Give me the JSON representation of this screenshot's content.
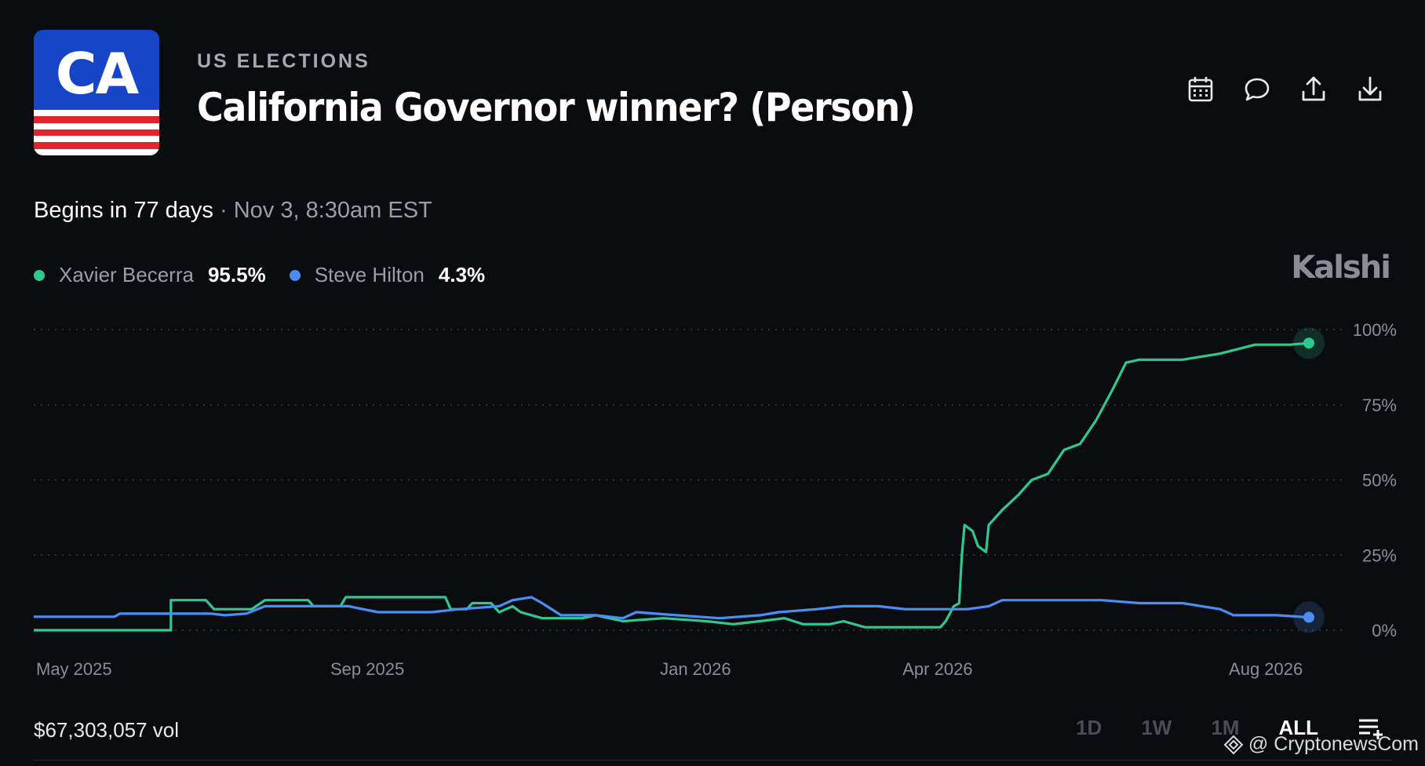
{
  "header": {
    "logo_text": "CA",
    "category": "US ELECTIONS",
    "title": "California Governor winner? (Person)",
    "actions": [
      {
        "name": "calendar-icon"
      },
      {
        "name": "comment-icon"
      },
      {
        "name": "share-icon"
      },
      {
        "name": "download-icon"
      }
    ]
  },
  "status": {
    "begins": "Begins in 77 days",
    "separator": " · ",
    "date": "Nov 3, 8:30am EST"
  },
  "legend": [
    {
      "name": "Xavier Becerra",
      "value": "95.5%",
      "color": "#2fc98e"
    },
    {
      "name": "Steve Hilton",
      "value": "4.3%",
      "color": "#4a8ef5"
    }
  ],
  "brand": "Kalshi",
  "footer": {
    "volume": "$67,303,057 vol",
    "ranges": [
      "1D",
      "1W",
      "1M",
      "ALL"
    ],
    "active_range": "ALL",
    "watermark": "@ CryptonewsCom"
  },
  "colors": {
    "background": "#0b0c10",
    "becerra": "#2fc98e",
    "hilton": "#4a8ef5",
    "grid": "#3a3d45"
  },
  "chart_data": {
    "type": "line",
    "y_ticks": [
      "100%",
      "75%",
      "50%",
      "25%",
      "0%"
    ],
    "ylim": [
      0,
      100
    ],
    "x_ticks": [
      "May 2025",
      "Sep 2025",
      "Jan 2026",
      "Apr 2026",
      "Aug 2026"
    ],
    "x_tick_dates": [
      "2025-05-01",
      "2025-09-01",
      "2026-01-01",
      "2026-04-01",
      "2026-08-01"
    ],
    "series": [
      {
        "name": "Xavier Becerra",
        "color": "#2fc98e",
        "points": [
          [
            "2025-04-30",
            0
          ],
          [
            "2025-06-20",
            0
          ],
          [
            "2025-06-20",
            10
          ],
          [
            "2025-07-03",
            10
          ],
          [
            "2025-07-06",
            7
          ],
          [
            "2025-07-20",
            7
          ],
          [
            "2025-07-25",
            10
          ],
          [
            "2025-08-10",
            10
          ],
          [
            "2025-08-12",
            8
          ],
          [
            "2025-08-22",
            8
          ],
          [
            "2025-08-24",
            11
          ],
          [
            "2025-09-30",
            11
          ],
          [
            "2025-10-02",
            7
          ],
          [
            "2025-10-08",
            7
          ],
          [
            "2025-10-10",
            9
          ],
          [
            "2025-10-17",
            9
          ],
          [
            "2025-10-20",
            6
          ],
          [
            "2025-10-25",
            8
          ],
          [
            "2025-10-28",
            6
          ],
          [
            "2025-11-05",
            4
          ],
          [
            "2025-11-20",
            4
          ],
          [
            "2025-11-25",
            5
          ],
          [
            "2025-12-05",
            3
          ],
          [
            "2025-12-20",
            4
          ],
          [
            "2026-01-05",
            3
          ],
          [
            "2026-01-15",
            2
          ],
          [
            "2026-01-25",
            3
          ],
          [
            "2026-02-03",
            4
          ],
          [
            "2026-02-10",
            2
          ],
          [
            "2026-02-20",
            2
          ],
          [
            "2026-02-25",
            3
          ],
          [
            "2026-03-05",
            1
          ],
          [
            "2026-03-20",
            1
          ],
          [
            "2026-03-30",
            1
          ],
          [
            "2026-04-02",
            1
          ],
          [
            "2026-04-04",
            3
          ],
          [
            "2026-04-07",
            8
          ],
          [
            "2026-04-09",
            9
          ],
          [
            "2026-04-10",
            25
          ],
          [
            "2026-04-11",
            35
          ],
          [
            "2026-04-14",
            33
          ],
          [
            "2026-04-16",
            28
          ],
          [
            "2026-04-19",
            26
          ],
          [
            "2026-04-20",
            35
          ],
          [
            "2026-04-25",
            40
          ],
          [
            "2026-05-01",
            45
          ],
          [
            "2026-05-06",
            50
          ],
          [
            "2026-05-12",
            52
          ],
          [
            "2026-05-18",
            60
          ],
          [
            "2026-05-24",
            62
          ],
          [
            "2026-05-30",
            70
          ],
          [
            "2026-06-05",
            80
          ],
          [
            "2026-06-10",
            89
          ],
          [
            "2026-06-15",
            90
          ],
          [
            "2026-07-01",
            90
          ],
          [
            "2026-07-15",
            92
          ],
          [
            "2026-07-28",
            95
          ],
          [
            "2026-08-10",
            95
          ],
          [
            "2026-08-17",
            95.5
          ]
        ]
      },
      {
        "name": "Steve Hilton",
        "color": "#4a8ef5",
        "points": [
          [
            "2025-04-30",
            4.5
          ],
          [
            "2025-05-30",
            4.5
          ],
          [
            "2025-06-01",
            5.5
          ],
          [
            "2025-07-05",
            5.5
          ],
          [
            "2025-07-10",
            5
          ],
          [
            "2025-07-18",
            5.5
          ],
          [
            "2025-07-25",
            8
          ],
          [
            "2025-08-25",
            8
          ],
          [
            "2025-09-05",
            6
          ],
          [
            "2025-09-25",
            6
          ],
          [
            "2025-10-05",
            7
          ],
          [
            "2025-10-20",
            8
          ],
          [
            "2025-10-25",
            10
          ],
          [
            "2025-11-01",
            11
          ],
          [
            "2025-11-05",
            9
          ],
          [
            "2025-11-12",
            5
          ],
          [
            "2025-11-25",
            5
          ],
          [
            "2025-12-05",
            4
          ],
          [
            "2025-12-10",
            6
          ],
          [
            "2025-12-25",
            5
          ],
          [
            "2026-01-10",
            4
          ],
          [
            "2026-01-25",
            5
          ],
          [
            "2026-02-01",
            6
          ],
          [
            "2026-02-15",
            7
          ],
          [
            "2026-02-25",
            8
          ],
          [
            "2026-03-10",
            8
          ],
          [
            "2026-03-20",
            7
          ],
          [
            "2026-04-01",
            7
          ],
          [
            "2026-04-12",
            7
          ],
          [
            "2026-04-20",
            8
          ],
          [
            "2026-04-25",
            10
          ],
          [
            "2026-05-05",
            10
          ],
          [
            "2026-05-20",
            10
          ],
          [
            "2026-06-01",
            10
          ],
          [
            "2026-06-15",
            9
          ],
          [
            "2026-07-01",
            9
          ],
          [
            "2026-07-15",
            7
          ],
          [
            "2026-07-20",
            5
          ],
          [
            "2026-08-05",
            5
          ],
          [
            "2026-08-17",
            4.3
          ]
        ]
      }
    ]
  }
}
